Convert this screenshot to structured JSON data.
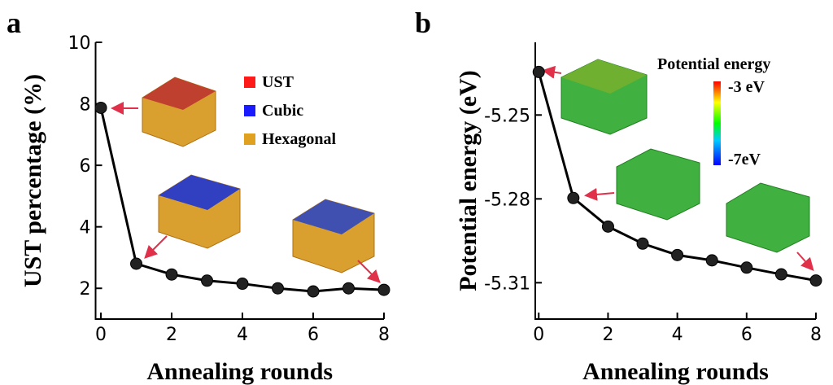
{
  "chart_data": [
    {
      "type": "line",
      "panel_label": "a",
      "xlabel": "Annealing rounds",
      "ylabel": "UST percentage (%)",
      "x": [
        0,
        1,
        2,
        3,
        4,
        5,
        6,
        7,
        8
      ],
      "series": [
        {
          "color": "#000000",
          "values": [
            7.87,
            2.8,
            2.45,
            2.25,
            2.15,
            2.0,
            1.9,
            2.0,
            1.95
          ]
        }
      ],
      "xlim": [
        -0.15,
        8
      ],
      "xticks": [
        0,
        2,
        4,
        6,
        8
      ],
      "ylim": [
        1,
        10
      ],
      "yticks": [
        2,
        4,
        6,
        8,
        10
      ],
      "legend": [
        {
          "name": "UST",
          "color": "#ff1a1a"
        },
        {
          "name": "Cubic",
          "color": "#1a1aff"
        },
        {
          "name": "Hexagonal",
          "color": "#e0a020"
        }
      ]
    },
    {
      "type": "line",
      "panel_label": "b",
      "xlabel": "Annealing rounds",
      "ylabel": "Potential energy (eV)",
      "x": [
        0,
        1,
        2,
        3,
        4,
        5,
        6,
        7,
        8
      ],
      "series": [
        {
          "color": "#000000",
          "values": [
            -5.2346,
            -5.2797,
            -5.2899,
            -5.296,
            -5.3001,
            -5.302,
            -5.3046,
            -5.307,
            -5.3092
          ]
        }
      ],
      "xlim": [
        -0.1,
        8
      ],
      "xticks": [
        0,
        2,
        4,
        6,
        8
      ],
      "ylim": [
        -5.323,
        -5.224
      ],
      "yticks": [
        -5.25,
        -5.28,
        -5.31
      ],
      "colorbar": {
        "title": "Potential energy",
        "max_label": "-3 eV",
        "min_label": "-7eV"
      }
    }
  ]
}
